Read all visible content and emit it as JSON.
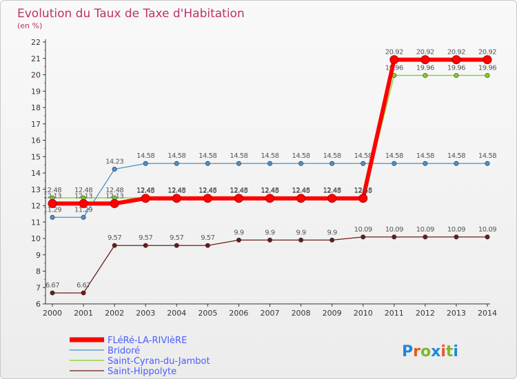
{
  "header": {
    "title": "Evolution du Taux de Taxe d'Habitation",
    "subtitle": "(en %)"
  },
  "logo": {
    "text": "Proxiti"
  },
  "chart_data": {
    "type": "line",
    "title": "Evolution du Taux de Taxe d'Habitation",
    "subtitle": "(en %)",
    "xlabel": "",
    "ylabel": "",
    "x": [
      "2000",
      "2001",
      "2002",
      "2003",
      "2004",
      "2005",
      "2006",
      "2007",
      "2008",
      "2009",
      "2010",
      "2011",
      "2012",
      "2013",
      "2014"
    ],
    "ylim": [
      6,
      22
    ],
    "yticks": [
      "6",
      "7",
      "8",
      "9",
      "10",
      "11",
      "12",
      "13",
      "14",
      "15",
      "16",
      "17",
      "18",
      "19",
      "20",
      "21",
      "22"
    ],
    "grid": false,
    "legend": "bottom-left",
    "series": [
      {
        "name": "Saint-Hippolyte",
        "color": "#6b1a1a",
        "values": [
          6.67,
          6.67,
          9.57,
          9.57,
          9.57,
          9.57,
          9.9,
          9.9,
          9.9,
          9.9,
          10.09,
          10.09,
          10.09,
          10.09,
          10.09
        ],
        "labels": [
          "6.67",
          "6.67",
          "9.57",
          "9.57",
          "9.57",
          "9.57",
          "9.9",
          "9.9",
          "9.9",
          "9.9",
          "10.09",
          "10.09",
          "10.09",
          "10.09",
          "10.09"
        ]
      },
      {
        "name": "Saint-Cyran-du-Jambot",
        "color": "#7ed321",
        "values": [
          12.48,
          12.48,
          12.48,
          12.48,
          12.48,
          12.48,
          12.48,
          12.48,
          12.48,
          12.48,
          12.48,
          19.96,
          19.96,
          19.96,
          19.96
        ],
        "labels": [
          "12.48",
          "12.48",
          "12.48",
          "12.48",
          "12.48",
          "12.48",
          "12.48",
          "12.48",
          "12.48",
          "12.48",
          "12.48",
          "19.96",
          "19.96",
          "19.96",
          "19.96"
        ]
      },
      {
        "name": "Bridoré",
        "color": "#4a90c8",
        "values": [
          11.29,
          11.29,
          14.23,
          14.58,
          14.58,
          14.58,
          14.58,
          14.58,
          14.58,
          14.58,
          14.58,
          14.58,
          14.58,
          14.58,
          14.58
        ],
        "labels": [
          "11.29",
          "11.29",
          "14.23",
          "14.58",
          "14.58",
          "14.58",
          "14.58",
          "14.58",
          "14.58",
          "14.58",
          "14.58",
          "14.58",
          "14.58",
          "14.58",
          "14.58"
        ]
      },
      {
        "name": "FLéRé-LA-RIVIèRE",
        "color": "#ff0000",
        "values": [
          12.13,
          12.13,
          12.13,
          12.45,
          12.45,
          12.45,
          12.45,
          12.45,
          12.45,
          12.45,
          12.45,
          20.92,
          20.92,
          20.92,
          20.92
        ],
        "labels": [
          "12.13",
          "12.13",
          "12.13",
          "12.45",
          "12.45",
          "12.45",
          "12.45",
          "12.45",
          "12.45",
          "12.45",
          "12.45",
          "20.92",
          "20.92",
          "20.92",
          "20.92"
        ]
      }
    ],
    "legend_order": [
      "FLéRé-LA-RIVIèRE",
      "Bridoré",
      "Saint-Cyran-du-Jambot",
      "Saint-Hippolyte"
    ]
  }
}
